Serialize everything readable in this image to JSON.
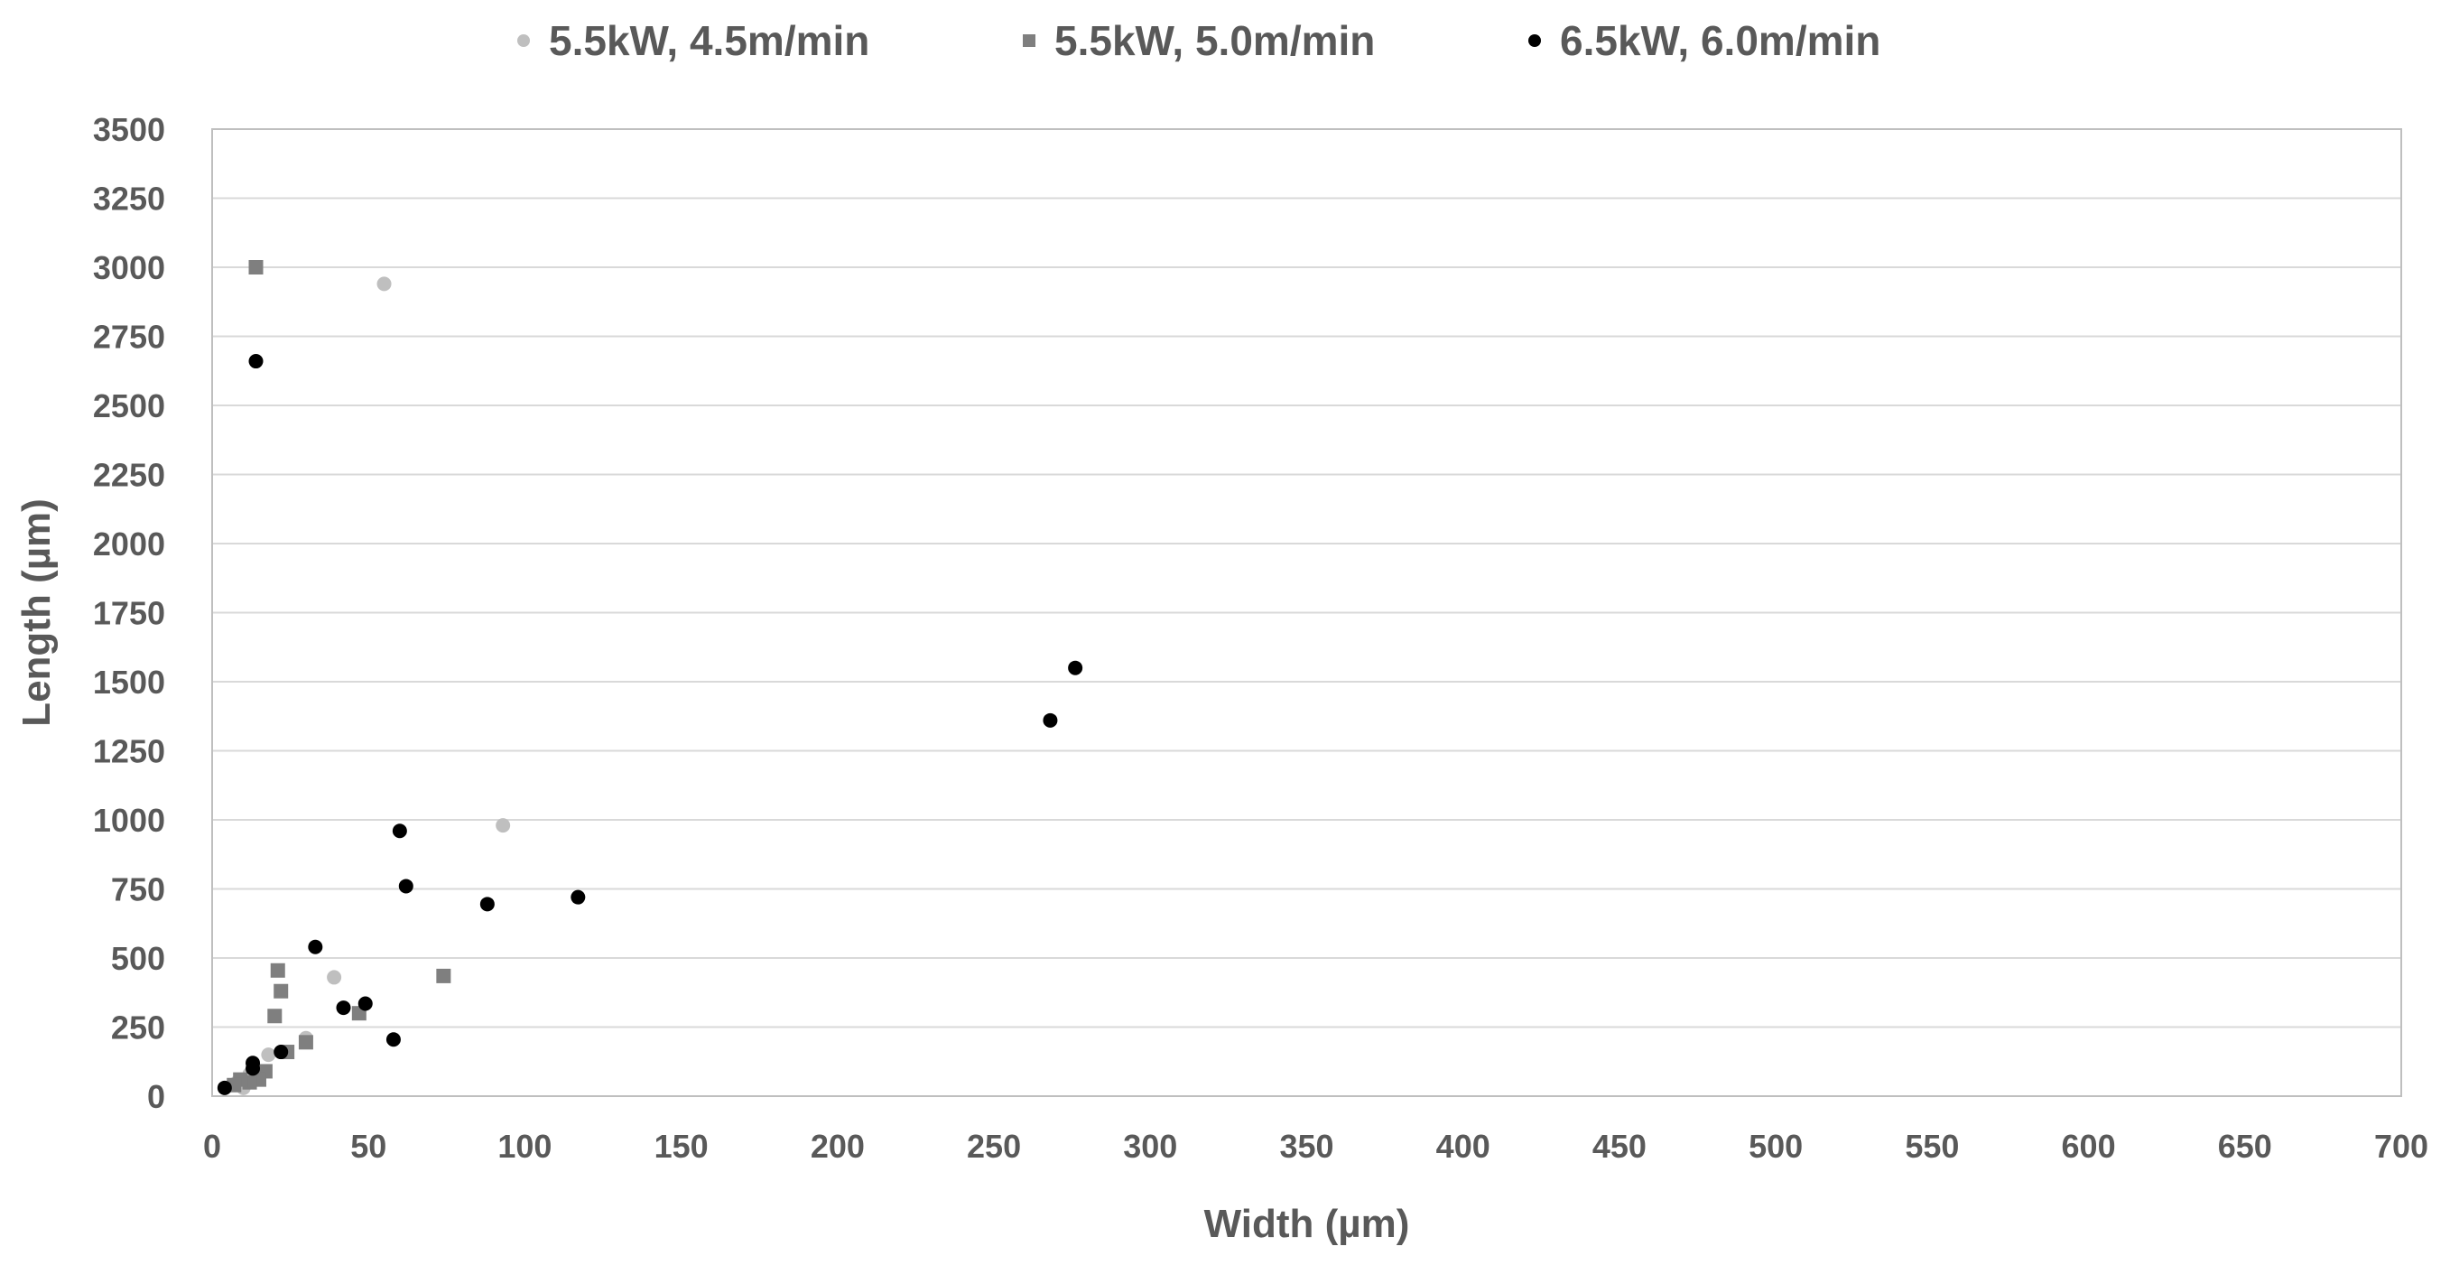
{
  "chart_data": {
    "type": "scatter",
    "title": "",
    "xlabel": "Width (µm)",
    "ylabel": "Length (µm)",
    "xlim": [
      0,
      700
    ],
    "ylim": [
      0,
      3500
    ],
    "xticks": [
      0,
      50,
      100,
      150,
      200,
      250,
      300,
      350,
      400,
      450,
      500,
      550,
      600,
      650,
      700
    ],
    "yticks": [
      0,
      250,
      500,
      750,
      1000,
      1250,
      1500,
      1750,
      2000,
      2250,
      2500,
      2750,
      3000,
      3250,
      3500
    ],
    "grid": "horizontal",
    "legend_position": "top",
    "series": [
      {
        "name": "5.5kW, 4.5m/min",
        "marker": "circle",
        "color": "#bfbfbf",
        "points": [
          {
            "x": 55,
            "y": 2940
          },
          {
            "x": 93,
            "y": 980
          },
          {
            "x": 39,
            "y": 430
          },
          {
            "x": 30,
            "y": 210
          },
          {
            "x": 18,
            "y": 150
          },
          {
            "x": 12,
            "y": 80
          },
          {
            "x": 10,
            "y": 30
          },
          {
            "x": 8,
            "y": 50
          },
          {
            "x": 14,
            "y": 60
          }
        ]
      },
      {
        "name": "5.5kW, 5.0m/min",
        "marker": "square",
        "color": "#7f7f7f",
        "points": [
          {
            "x": 14,
            "y": 3000
          },
          {
            "x": 21,
            "y": 455
          },
          {
            "x": 22,
            "y": 380
          },
          {
            "x": 20,
            "y": 290
          },
          {
            "x": 74,
            "y": 435
          },
          {
            "x": 47,
            "y": 300
          },
          {
            "x": 30,
            "y": 195
          },
          {
            "x": 24,
            "y": 160
          },
          {
            "x": 17,
            "y": 90
          },
          {
            "x": 15,
            "y": 60
          },
          {
            "x": 12,
            "y": 50
          },
          {
            "x": 9,
            "y": 60
          },
          {
            "x": 7,
            "y": 40
          }
        ]
      },
      {
        "name": "6.5kW, 6.0m/min",
        "marker": "circle",
        "color": "#000000",
        "points": [
          {
            "x": 14,
            "y": 2660
          },
          {
            "x": 276,
            "y": 1550
          },
          {
            "x": 268,
            "y": 1360
          },
          {
            "x": 60,
            "y": 960
          },
          {
            "x": 62,
            "y": 760
          },
          {
            "x": 117,
            "y": 720
          },
          {
            "x": 88,
            "y": 695
          },
          {
            "x": 33,
            "y": 540
          },
          {
            "x": 42,
            "y": 320
          },
          {
            "x": 49,
            "y": 335
          },
          {
            "x": 58,
            "y": 205
          },
          {
            "x": 22,
            "y": 160
          },
          {
            "x": 13,
            "y": 120
          },
          {
            "x": 13,
            "y": 100
          },
          {
            "x": 4,
            "y": 30
          }
        ]
      }
    ]
  }
}
